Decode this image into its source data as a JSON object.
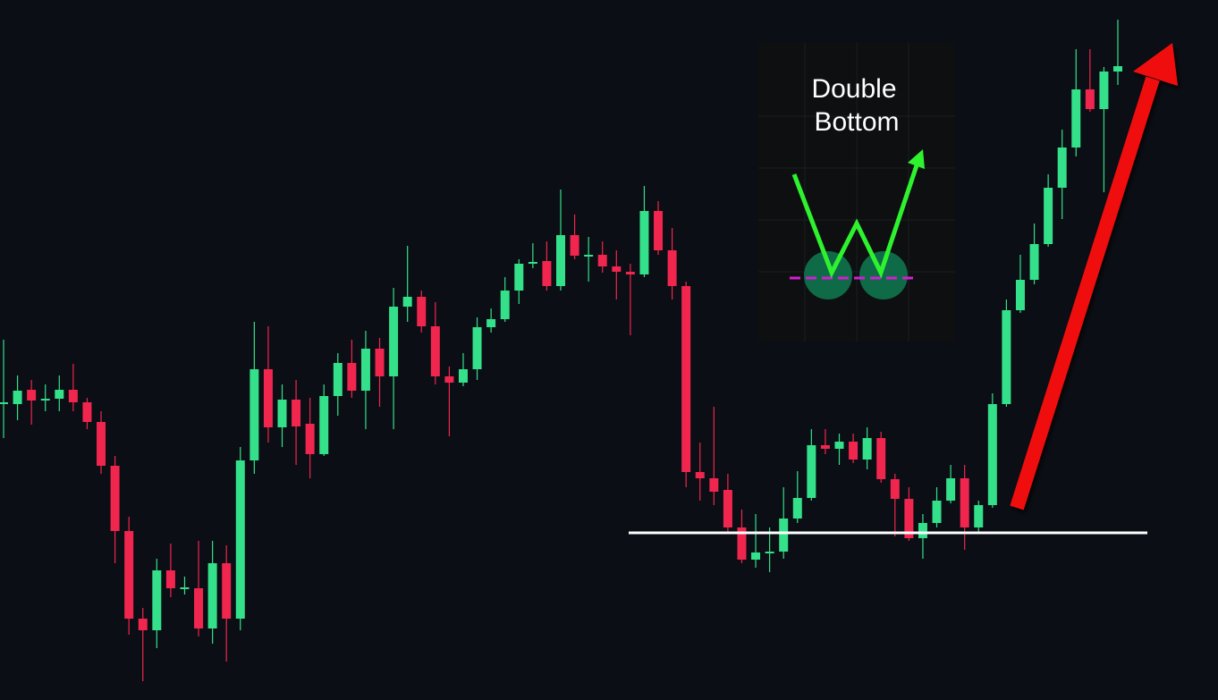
{
  "chart_data": {
    "type": "candlestick",
    "open": [
      333,
      331,
      347,
      336,
      337,
      347,
      333,
      311,
      262,
      189,
      91,
      78,
      145,
      125,
      125,
      80,
      153,
      91,
      268,
      370,
      305,
      336,
      309,
      275,
      340,
      377,
      346,
      393,
      362,
      440,
      451,
      418,
      362,
      355,
      370,
      417,
      426,
      458,
      489,
      491,
      463,
      520,
      497,
      498,
      485,
      479,
      476,
      547,
      503,
      463,
      255,
      248,
      235,
      193,
      157,
      165,
      166,
      203,
      226,
      285,
      281,
      289,
      269,
      293,
      247,
      225,
      181,
      198,
      223,
      248,
      193,
      218,
      331,
      436,
      470,
      510,
      573,
      618,
      683,
      661,
      703
    ],
    "high": [
      403,
      363,
      358,
      353,
      363,
      376,
      338,
      323,
      273,
      205,
      103,
      158,
      175,
      138,
      178,
      178,
      173,
      283,
      423,
      418,
      353,
      358,
      338,
      353,
      388,
      403,
      413,
      405,
      461,
      508,
      458,
      445,
      373,
      388,
      428,
      438,
      473,
      493,
      511,
      513,
      571,
      543,
      518,
      513,
      503,
      488,
      575,
      558,
      528,
      468,
      288,
      328,
      253,
      213,
      208,
      193,
      238,
      256,
      303,
      303,
      298,
      298,
      305,
      300,
      253,
      238,
      208,
      238,
      263,
      263,
      223,
      343,
      448,
      498,
      533,
      588,
      638,
      728,
      728,
      708,
      761
    ],
    "low": [
      293,
      313,
      308,
      323,
      323,
      323,
      303,
      253,
      153,
      73,
      21,
      58,
      115,
      118,
      71,
      63,
      43,
      78,
      253,
      288,
      283,
      263,
      248,
      273,
      318,
      338,
      303,
      328,
      303,
      423,
      411,
      353,
      295,
      351,
      358,
      411,
      423,
      443,
      483,
      458,
      458,
      493,
      468,
      478,
      448,
      408,
      473,
      498,
      448,
      238,
      223,
      218,
      188,
      153,
      148,
      143,
      158,
      198,
      223,
      275,
      263,
      265,
      258,
      243,
      183,
      178,
      158,
      193,
      220,
      168,
      188,
      215,
      328,
      433,
      465,
      507,
      538,
      608,
      658,
      568,
      688
    ],
    "close": [
      333,
      346,
      335,
      337,
      347,
      333,
      311,
      262,
      189,
      91,
      78,
      145,
      125,
      126,
      80,
      153,
      91,
      268,
      370,
      305,
      336,
      306,
      275,
      340,
      377,
      346,
      393,
      362,
      440,
      451,
      418,
      362,
      355,
      370,
      417,
      426,
      458,
      488,
      490,
      463,
      520,
      497,
      498,
      485,
      479,
      476,
      547,
      503,
      463,
      255,
      248,
      233,
      193,
      157,
      165,
      166,
      203,
      226,
      285,
      281,
      289,
      269,
      293,
      247,
      225,
      181,
      198,
      223,
      248,
      193,
      218,
      331,
      436,
      470,
      510,
      573,
      618,
      683,
      661,
      703,
      709
    ],
    "up_color": "#34e08a",
    "down_color": "#f0264f",
    "ylim": [
      0,
      783
    ],
    "support_level": 187,
    "annotation": [
      "Double",
      "Bottom"
    ]
  }
}
